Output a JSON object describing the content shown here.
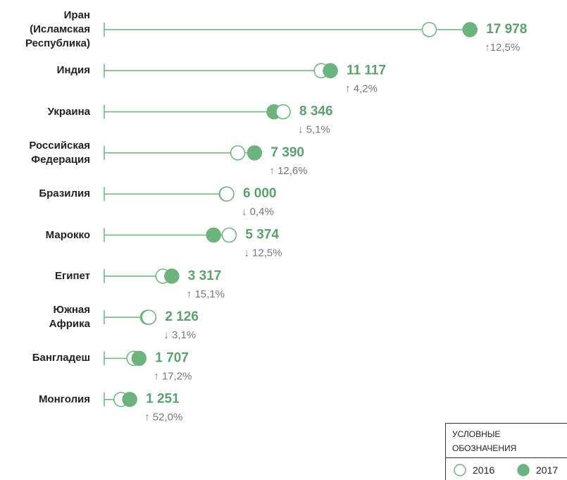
{
  "chart_data": {
    "type": "dumbbell",
    "categories": [
      "Иран\n(Исламская\nРеспублика)",
      "Индия",
      "Украина",
      "Российская\nФедерация",
      "Бразилия",
      "Марокко",
      "Египет",
      "Южная\nАфрика",
      "Бангладеш",
      "Монголия"
    ],
    "series": [
      {
        "name": "2016",
        "color": "#6db37e",
        "fill": "none",
        "values": [
          15980,
          10669,
          8795,
          6563,
          6024,
          6142,
          2882,
          2194,
          1456,
          823
        ]
      },
      {
        "name": "2017",
        "color": "#6db37e",
        "fill": "solid",
        "values": [
          17978,
          11117,
          8346,
          7390,
          6000,
          5374,
          3317,
          2126,
          1707,
          1251
        ],
        "value_labels": [
          "17 978",
          "11 117",
          "8 346",
          "7 390",
          "6 000",
          "5 374",
          "3 317",
          "2 126",
          "1 707",
          "1 251"
        ]
      }
    ],
    "changes": [
      12.5,
      4.2,
      -5.1,
      12.6,
      -0.4,
      -12.5,
      15.1,
      -3.1,
      17.2,
      52.0
    ],
    "change_labels": [
      "↑12,5%",
      "↑ 4,2%",
      "↓ 5,1%",
      "↑ 12,6%",
      "↓ 0,4%",
      "↓ 12,5%",
      "↑ 15,1%",
      "↓ 3,1%",
      "↑ 17,2%",
      "↑ 52,0%"
    ],
    "xlim": [
      0,
      22750
    ],
    "legend_title": "УСЛОВНЫЕ ОБОЗНАЧЕНИЯ",
    "legend_position": "bottom-right"
  }
}
